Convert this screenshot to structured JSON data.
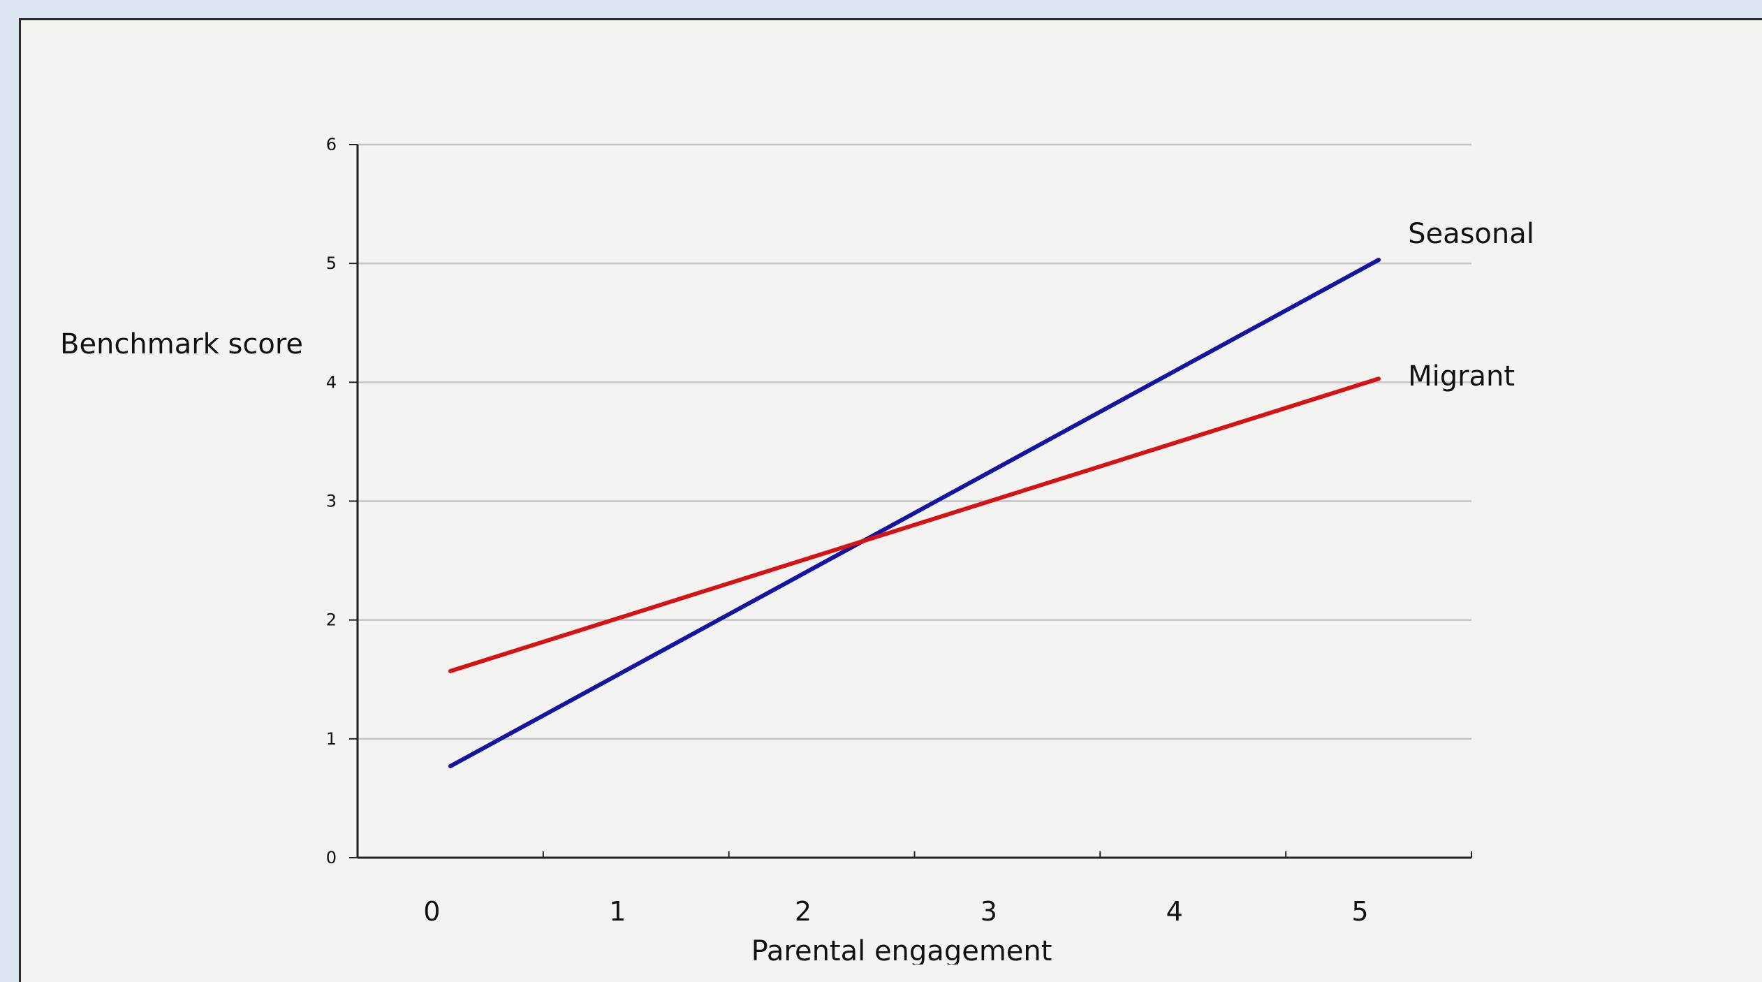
{
  "chart_data": {
    "type": "line",
    "title": "",
    "xlabel": "Parental engagement",
    "ylabel": "Benchmark score",
    "x_ticks": [
      "0",
      "1",
      "2",
      "3",
      "4",
      "5"
    ],
    "y_ticks": [
      "0",
      "1",
      "2",
      "3",
      "4",
      "5",
      "6"
    ],
    "xlim": [
      -0.4,
      5.6
    ],
    "ylim": [
      0,
      6
    ],
    "grid": true,
    "series": [
      {
        "name": "Seasonal",
        "x": [
          0.1,
          5.1
        ],
        "y": [
          0.77,
          5.03
        ],
        "color": "#1414a0"
      },
      {
        "name": "Migrant",
        "x": [
          0.1,
          5.1
        ],
        "y": [
          1.57,
          4.03
        ],
        "color": "#d41414"
      }
    ]
  }
}
